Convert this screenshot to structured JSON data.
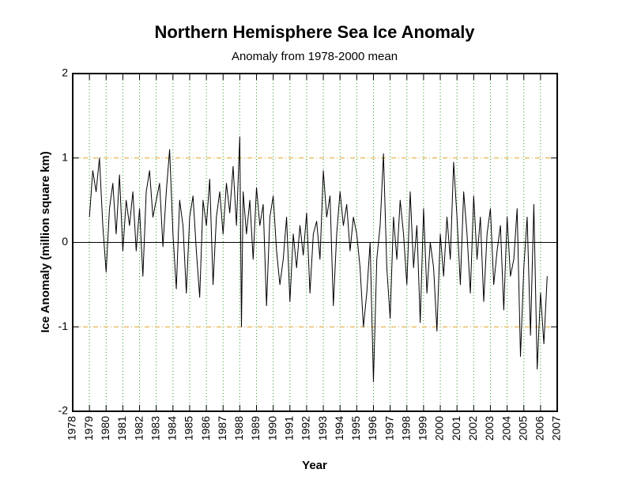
{
  "chart_data": {
    "type": "line",
    "title": "Northern Hemisphere Sea Ice Anomaly",
    "subtitle": "Anomaly from 1978-2000 mean",
    "x_label": "Year",
    "y_label": "Ice Anomaly (million square km)",
    "x": [
      1979.0,
      1979.2,
      1979.4,
      1979.6,
      1979.8,
      1980.0,
      1980.2,
      1980.4,
      1980.6,
      1980.8,
      1981.0,
      1981.2,
      1981.4,
      1981.6,
      1981.8,
      1982.0,
      1982.2,
      1982.4,
      1982.6,
      1982.8,
      1983.0,
      1983.2,
      1983.4,
      1983.6,
      1983.8,
      1984.0,
      1984.2,
      1984.4,
      1984.6,
      1984.8,
      1985.0,
      1985.2,
      1985.4,
      1985.6,
      1985.8,
      1986.0,
      1986.2,
      1986.4,
      1986.6,
      1986.8,
      1987.0,
      1987.2,
      1987.4,
      1987.6,
      1987.8,
      1988.0,
      1988.1,
      1988.2,
      1988.4,
      1988.6,
      1988.8,
      1989.0,
      1989.2,
      1989.4,
      1989.6,
      1989.8,
      1990.0,
      1990.2,
      1990.4,
      1990.6,
      1990.8,
      1991.0,
      1991.2,
      1991.4,
      1991.6,
      1991.8,
      1992.0,
      1992.2,
      1992.4,
      1992.6,
      1992.8,
      1993.0,
      1993.2,
      1993.4,
      1993.6,
      1993.8,
      1994.0,
      1994.2,
      1994.4,
      1994.6,
      1994.8,
      1995.0,
      1995.2,
      1995.4,
      1995.6,
      1995.8,
      1996.0,
      1996.2,
      1996.4,
      1996.6,
      1996.8,
      1997.0,
      1997.2,
      1997.4,
      1997.6,
      1997.8,
      1998.0,
      1998.2,
      1998.4,
      1998.6,
      1998.8,
      1999.0,
      1999.2,
      1999.4,
      1999.6,
      1999.8,
      2000.0,
      2000.2,
      2000.4,
      2000.6,
      2000.8,
      2001.0,
      2001.2,
      2001.4,
      2001.6,
      2001.8,
      2002.0,
      2002.2,
      2002.4,
      2002.6,
      2002.8,
      2003.0,
      2003.2,
      2003.4,
      2003.6,
      2003.8,
      2004.0,
      2004.2,
      2004.4,
      2004.6,
      2004.8,
      2005.0,
      2005.2,
      2005.4,
      2005.6,
      2005.8,
      2006.0,
      2006.2,
      2006.4
    ],
    "values": [
      0.3,
      0.85,
      0.6,
      1.0,
      0.2,
      -0.35,
      0.4,
      0.7,
      0.1,
      0.8,
      -0.1,
      0.5,
      0.2,
      0.6,
      -0.1,
      0.4,
      -0.4,
      0.6,
      0.85,
      0.3,
      0.5,
      0.7,
      -0.05,
      0.6,
      1.1,
      0.1,
      -0.55,
      0.5,
      0.2,
      -0.6,
      0.3,
      0.55,
      -0.1,
      -0.65,
      0.5,
      0.2,
      0.75,
      -0.5,
      0.3,
      0.6,
      0.1,
      0.7,
      0.35,
      0.9,
      0.2,
      1.25,
      -1.0,
      0.6,
      0.1,
      0.5,
      -0.2,
      0.65,
      0.2,
      0.45,
      -0.75,
      0.3,
      0.55,
      -0.1,
      -0.5,
      -0.2,
      0.3,
      -0.7,
      0.1,
      -0.3,
      0.2,
      -0.15,
      0.35,
      -0.6,
      0.1,
      0.25,
      -0.2,
      0.85,
      0.3,
      0.55,
      -0.75,
      0.1,
      0.6,
      0.2,
      0.45,
      -0.1,
      0.3,
      0.1,
      -0.3,
      -1.0,
      -0.6,
      0.0,
      -1.65,
      -0.2,
      0.2,
      1.05,
      -0.3,
      -0.9,
      0.3,
      -0.2,
      0.5,
      0.1,
      -0.5,
      0.6,
      -0.3,
      0.2,
      -0.95,
      0.4,
      -0.6,
      0.0,
      -0.3,
      -1.05,
      0.1,
      -0.4,
      0.3,
      -0.2,
      0.95,
      0.3,
      -0.5,
      0.6,
      0.1,
      -0.6,
      0.55,
      -0.2,
      0.3,
      -0.7,
      0.1,
      0.4,
      -0.5,
      -0.1,
      0.2,
      -0.8,
      0.3,
      -0.4,
      -0.2,
      0.4,
      -1.35,
      -0.3,
      0.3,
      -1.1,
      0.45,
      -1.5,
      -0.6,
      -1.2,
      -0.4
    ],
    "color": "#000000",
    "xlim": [
      1978,
      2007
    ],
    "xticks": [
      1978,
      1979,
      1980,
      1981,
      1982,
      1983,
      1984,
      1985,
      1986,
      1987,
      1988,
      1989,
      1990,
      1991,
      1992,
      1993,
      1994,
      1995,
      1996,
      1997,
      1998,
      1999,
      2000,
      2001,
      2002,
      2003,
      2004,
      2005,
      2006,
      2007
    ],
    "ylim": [
      -2,
      2
    ],
    "yticks": [
      -2,
      -1,
      0,
      1,
      2
    ],
    "grid": true
  }
}
